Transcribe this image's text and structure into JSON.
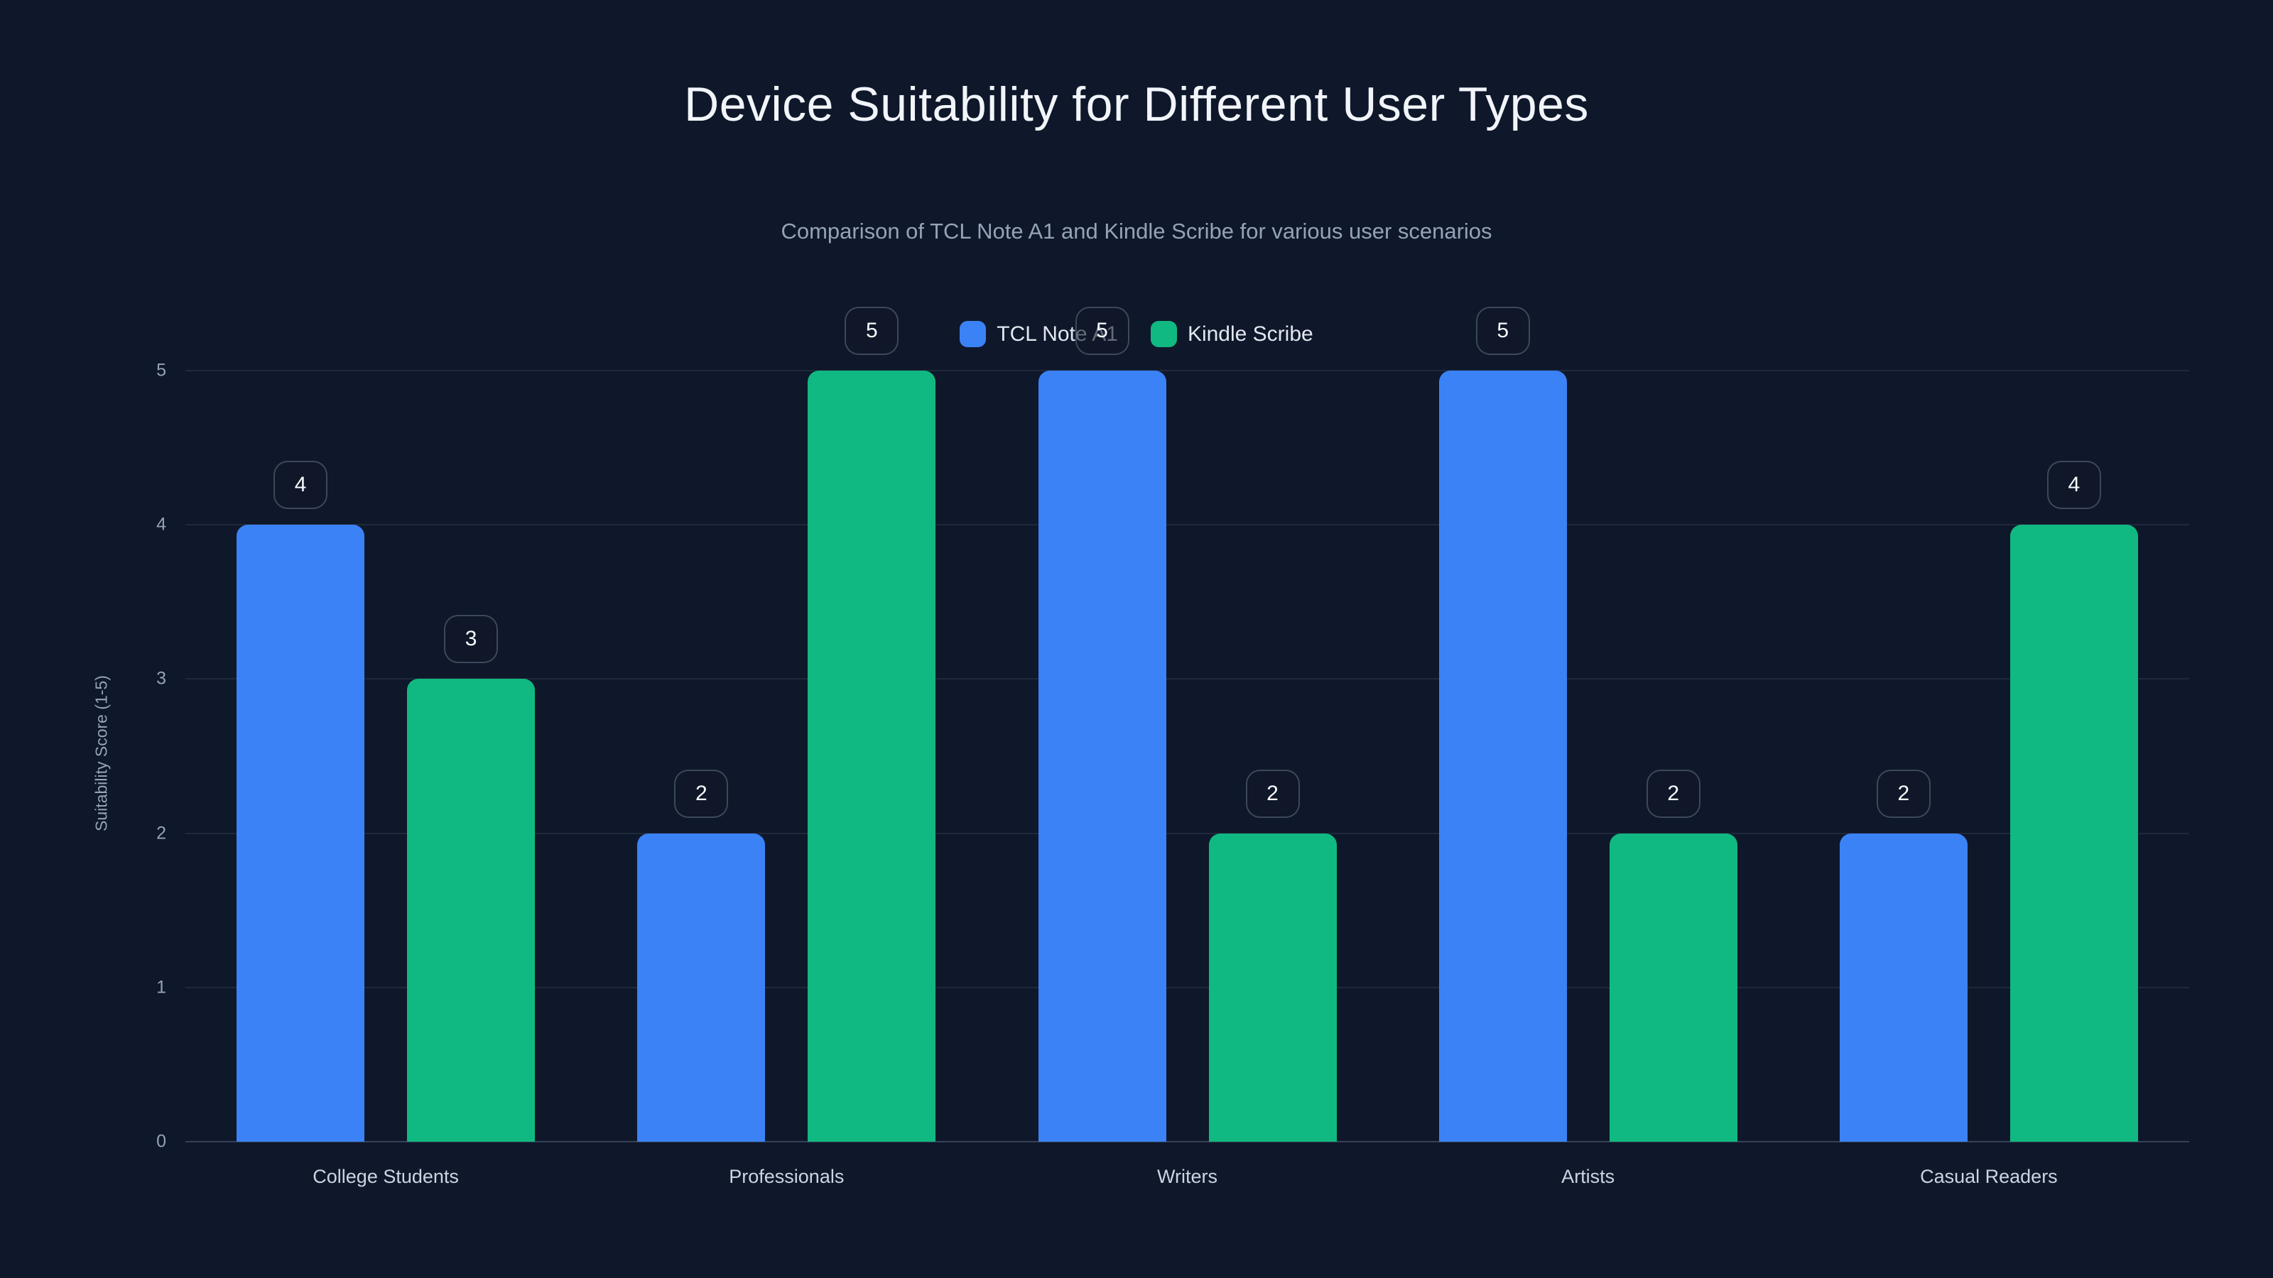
{
  "title": "Device Suitability for Different User Types",
  "subtitle": "Comparison of TCL Note A1 and Kindle Scribe for various user scenarios",
  "y_axis": {
    "title": "Suitability Score (1-5)",
    "ticks": [
      0,
      1,
      2,
      3,
      4,
      5
    ]
  },
  "colors": {
    "background": "#0f172a",
    "series_blue": "#3b82f6",
    "series_green": "#10b981",
    "title_text": "#f1f5f9",
    "subtitle_text": "#94a3b8",
    "axis_text": "#94a3b8",
    "category_text": "#cbd5e1",
    "legend_text": "#e2e8f0",
    "gridline": "rgba(148,163,184,0.13)"
  },
  "chart_data": {
    "type": "bar",
    "title": "Device Suitability for Different User Types",
    "subtitle": "Comparison of TCL Note A1 and Kindle Scribe for various user scenarios",
    "categories": [
      "College Students",
      "Professionals",
      "Writers",
      "Artists",
      "Casual Readers"
    ],
    "series": [
      {
        "name": "TCL Note A1",
        "color": "#3b82f6",
        "values": [
          4,
          2,
          5,
          5,
          2
        ]
      },
      {
        "name": "Kindle Scribe",
        "color": "#10b981",
        "values": [
          3,
          5,
          2,
          2,
          4
        ]
      }
    ],
    "xlabel": "",
    "ylabel": "Suitability Score (1-5)",
    "ylim": [
      0,
      5
    ],
    "yticks": [
      0,
      1,
      2,
      3,
      4,
      5
    ],
    "grid": true,
    "legend_position": "top-center",
    "data_labels": true,
    "data_label_style": "rounded-badge-above-bar"
  }
}
